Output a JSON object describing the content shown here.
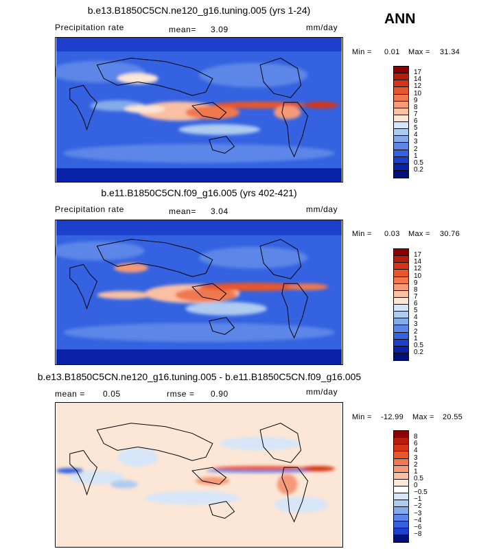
{
  "season": "ANN",
  "panels": [
    {
      "title": "b.e13.B1850C5CN.ne120_g16.tuning.005 (yrs 1-24)",
      "left_label": "Precipitation rate",
      "mid_label": "mean=",
      "mid_value": "3.09",
      "units": "mm/day",
      "min_label": "Min =",
      "min_value": "0.01",
      "max_label": "Max =",
      "max_value": "31.34",
      "levels": [
        "17",
        "14",
        "12",
        "10",
        "9",
        "8",
        "7",
        "6",
        "5",
        "4",
        "3",
        "2",
        "1",
        "0.5",
        "0.2"
      ],
      "colors": [
        "#8b0000",
        "#b71c0c",
        "#d43417",
        "#e8562b",
        "#f07850",
        "#f59a78",
        "#f9c0a4",
        "#fce6d6",
        "#d6e6f8",
        "#aecbf0",
        "#85aaea",
        "#5c86e8",
        "#3462e0",
        "#1c40cc",
        "#0a22a8",
        "#02107a"
      ]
    },
    {
      "title": "b.e11.B1850C5CN.f09_g16.005 (yrs 402-421)",
      "left_label": "Precipitation rate",
      "mid_label": "mean=",
      "mid_value": "3.04",
      "units": "mm/day",
      "min_label": "Min =",
      "min_value": "0.03",
      "max_label": "Max =",
      "max_value": "30.76",
      "levels": [
        "17",
        "14",
        "12",
        "10",
        "9",
        "8",
        "7",
        "6",
        "5",
        "4",
        "3",
        "2",
        "1",
        "0.5",
        "0.2"
      ],
      "colors": [
        "#8b0000",
        "#b71c0c",
        "#d43417",
        "#e8562b",
        "#f07850",
        "#f59a78",
        "#f9c0a4",
        "#fce6d6",
        "#d6e6f8",
        "#aecbf0",
        "#85aaea",
        "#5c86e8",
        "#3462e0",
        "#1c40cc",
        "#0a22a8",
        "#02107a"
      ]
    },
    {
      "title": "b.e13.B1850C5CN.ne120_g16.tuning.005 - b.e11.B1850C5CN.f09_g16.005",
      "left_label": "mean =",
      "left_value": "0.05",
      "mid_label": "rmse =",
      "mid_value": "0.90",
      "units": "mm/day",
      "min_label": "Min =",
      "min_value": "-12.99",
      "max_label": "Max =",
      "max_value": "20.55",
      "levels": [
        "8",
        "6",
        "4",
        "3",
        "2",
        "1",
        "0.5",
        "0",
        "−0.5",
        "−1",
        "−2",
        "−3",
        "−4",
        "−6",
        "−8"
      ],
      "colors": [
        "#8b0000",
        "#b71c0c",
        "#d43417",
        "#e8562b",
        "#f07850",
        "#f59a78",
        "#f9c0a4",
        "#fce6d6",
        "#ffffff",
        "#d6e6f8",
        "#aecbf0",
        "#85aaea",
        "#5c86e8",
        "#3462e0",
        "#1c40cc",
        "#02107a"
      ]
    }
  ]
}
